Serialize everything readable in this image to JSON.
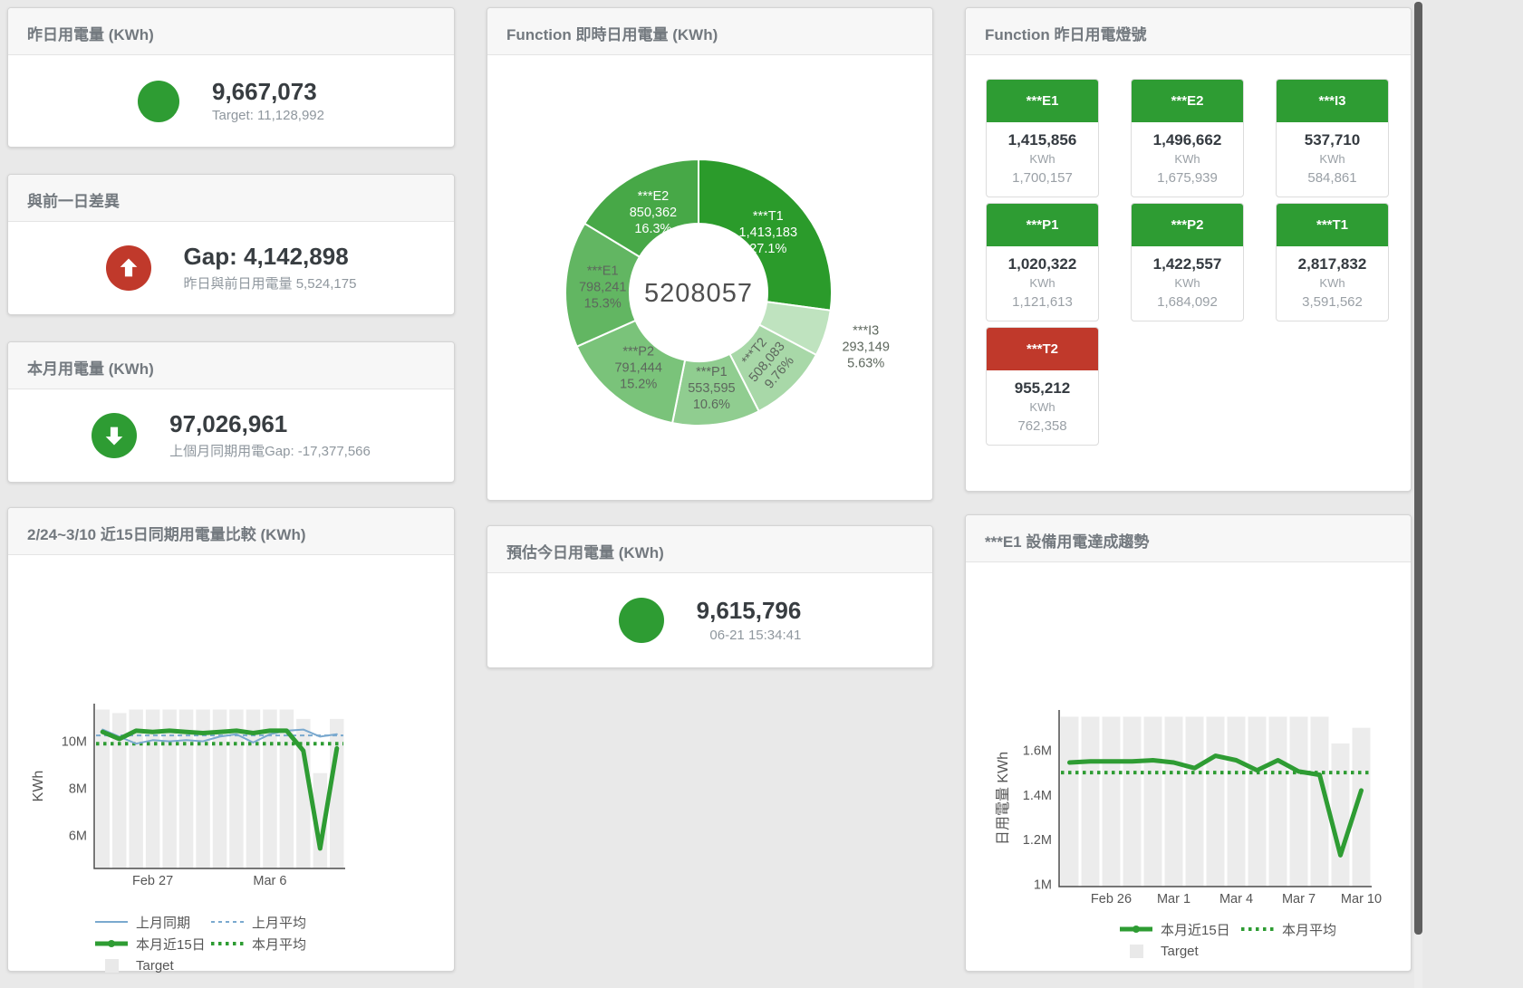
{
  "colors": {
    "green": "#2e9c33",
    "red": "#c0392b",
    "blue": "#7aa9cf",
    "bar_gray": "#ececec",
    "value_text": "#383d41",
    "sub_text": "#8f979e"
  },
  "cards": {
    "yesterday": {
      "title": "昨日用電量 (KWh)",
      "value": "9,667,073",
      "sub": "Target: 11,128,992"
    },
    "day_gap": {
      "title": "與前一日差異",
      "value": "Gap: 4,142,898",
      "sub": "昨日與前日用電量 5,524,175"
    },
    "month": {
      "title": "本月用電量 (KWh)",
      "value": "97,026,961",
      "sub": "上個月同期用電Gap: -17,377,566"
    },
    "compare": {
      "title": "2/24~3/10 近15日同期用電量比較 (KWh)"
    },
    "donut": {
      "title": "Function 即時日用電量 (KWh)"
    },
    "estimate": {
      "title": "預估今日用電量 (KWh)",
      "value": "9,615,796",
      "sub": "06-21 15:34:41"
    },
    "lights": {
      "title": "Function 昨日用電燈號"
    },
    "e1_trend": {
      "title": "***E1 設備用電達成趨勢"
    }
  },
  "lights_tiles": [
    {
      "name": "***E1",
      "value": "1,415,856",
      "unit": "KWh",
      "target": "1,700,157",
      "status": "green"
    },
    {
      "name": "***E2",
      "value": "1,496,662",
      "unit": "KWh",
      "target": "1,675,939",
      "status": "green"
    },
    {
      "name": "***I3",
      "value": "537,710",
      "unit": "KWh",
      "target": "584,861",
      "status": "green"
    },
    {
      "name": "***P1",
      "value": "1,020,322",
      "unit": "KWh",
      "target": "1,121,613",
      "status": "green"
    },
    {
      "name": "***P2",
      "value": "1,422,557",
      "unit": "KWh",
      "target": "1,684,092",
      "status": "green"
    },
    {
      "name": "***T1",
      "value": "2,817,832",
      "unit": "KWh",
      "target": "3,591,562",
      "status": "green"
    },
    {
      "name": "***T2",
      "value": "955,212",
      "unit": "KWh",
      "target": "762,358",
      "status": "red"
    }
  ],
  "chart_data": [
    {
      "type": "pie",
      "title": "Function 即時日用電量 (KWh)",
      "center_label": "5208057",
      "slices": [
        {
          "name": "***T1",
          "value": 1413183,
          "value_label": "1,413,183",
          "pct_label": "27.1%",
          "color": "#2b9b2b",
          "label": "inside-light"
        },
        {
          "name": "***I3",
          "value": 293149,
          "value_label": "293,149",
          "pct_label": "5.63%",
          "color": "#bfe3bf",
          "label": "outside"
        },
        {
          "name": "***T2",
          "value": 508083,
          "value_label": "508,083",
          "pct_label": "9.76%",
          "color": "#a8d8a8",
          "label": "rotated"
        },
        {
          "name": "***P1",
          "value": 553595,
          "value_label": "553,595",
          "pct_label": "10.6%",
          "color": "#90cd90",
          "label": "inside-dark"
        },
        {
          "name": "***P2",
          "value": 791444,
          "value_label": "791,444",
          "pct_label": "15.2%",
          "color": "#7ac37a",
          "label": "inside-dark"
        },
        {
          "name": "***E1",
          "value": 798241,
          "value_label": "798,241",
          "pct_label": "15.3%",
          "color": "#62b662",
          "label": "inside-dark"
        },
        {
          "name": "***E2",
          "value": 850362,
          "value_label": "850,362",
          "pct_label": "16.3%",
          "color": "#47a847",
          "label": "inside-light"
        }
      ]
    },
    {
      "type": "line",
      "title": "2/24~3/10 近15日同期用電量比較 (KWh)",
      "ylabel": "KWh",
      "unit": "M KWh",
      "ylim": [
        4.6,
        11.6
      ],
      "yticks": [
        {
          "value": 6,
          "label": "6M"
        },
        {
          "value": 8,
          "label": "8M"
        },
        {
          "value": 10,
          "label": "10M"
        }
      ],
      "xticks": [
        {
          "index": 3,
          "label": "Feb 27"
        },
        {
          "index": 10,
          "label": "Mar 6"
        }
      ],
      "categories": [
        "2/24",
        "2/25",
        "2/26",
        "2/27",
        "2/28",
        "3/1",
        "3/2",
        "3/3",
        "3/4",
        "3/5",
        "3/6",
        "3/7",
        "3/8",
        "3/9",
        "3/10"
      ],
      "series": [
        {
          "name": "Target",
          "type": "bar",
          "color": "#ececec",
          "values": [
            11.35,
            11.2,
            11.35,
            11.35,
            11.35,
            11.35,
            11.35,
            11.35,
            11.35,
            11.35,
            11.35,
            11.35,
            10.95,
            8.65,
            10.95
          ]
        },
        {
          "name": "上月平均",
          "type": "avg",
          "style": "dash",
          "color": "#7aa9cf",
          "value": 10.25
        },
        {
          "name": "本月平均",
          "type": "avg",
          "style": "dot",
          "color": "#2e9c33",
          "value": 9.9
        },
        {
          "name": "上月同期",
          "type": "line",
          "color": "#7aa9cf",
          "width": 2,
          "values": [
            10.5,
            10.2,
            9.9,
            10.05,
            10.0,
            10.05,
            10.0,
            10.2,
            10.3,
            9.95,
            10.3,
            10.45,
            10.5,
            10.2,
            10.3
          ]
        },
        {
          "name": "本月近15日",
          "type": "line",
          "color": "#2e9c33",
          "width": 5,
          "values": [
            10.4,
            10.1,
            10.45,
            10.4,
            10.45,
            10.4,
            10.35,
            10.4,
            10.45,
            10.35,
            10.45,
            10.45,
            9.6,
            5.45,
            9.7
          ]
        }
      ],
      "legend": [
        {
          "label": "上月同期",
          "swatch": "blue-line"
        },
        {
          "label": "上月平均",
          "swatch": "blue-dash"
        },
        {
          "label": "本月近15日",
          "swatch": "green-line"
        },
        {
          "label": "本月平均",
          "swatch": "green-dot"
        },
        {
          "label": "Target",
          "swatch": "gray-box"
        }
      ]
    },
    {
      "type": "line",
      "title": "***E1 設備用電達成趨勢",
      "ylabel": "日用電量 KWh",
      "unit": "M KWh",
      "ylim": [
        0.99,
        1.78
      ],
      "yticks": [
        {
          "value": 1,
          "label": "1M"
        },
        {
          "value": 1.2,
          "label": "1.2M"
        },
        {
          "value": 1.4,
          "label": "1.4M"
        },
        {
          "value": 1.6,
          "label": "1.6M"
        }
      ],
      "xticks": [
        {
          "index": 2,
          "label": "Feb 26"
        },
        {
          "index": 5,
          "label": "Mar 1"
        },
        {
          "index": 8,
          "label": "Mar 4"
        },
        {
          "index": 11,
          "label": "Mar 7"
        },
        {
          "index": 14,
          "label": "Mar 10"
        }
      ],
      "categories": [
        "2/24",
        "2/25",
        "2/26",
        "2/27",
        "2/28",
        "3/1",
        "3/2",
        "3/3",
        "3/4",
        "3/5",
        "3/6",
        "3/7",
        "3/8",
        "3/9",
        "3/10"
      ],
      "series": [
        {
          "name": "Target",
          "type": "bar",
          "color": "#ececec",
          "values": [
            1.75,
            1.75,
            1.75,
            1.75,
            1.75,
            1.75,
            1.75,
            1.75,
            1.75,
            1.75,
            1.75,
            1.75,
            1.75,
            1.63,
            1.7
          ]
        },
        {
          "name": "本月平均",
          "type": "avg",
          "style": "dot",
          "color": "#2e9c33",
          "value": 1.5
        },
        {
          "name": "本月近15日",
          "type": "line",
          "color": "#2e9c33",
          "width": 5,
          "values": [
            1.545,
            1.55,
            1.55,
            1.55,
            1.555,
            1.545,
            1.52,
            1.575,
            1.555,
            1.51,
            1.555,
            1.505,
            1.49,
            1.13,
            1.42
          ]
        }
      ],
      "legend": [
        {
          "label": "本月近15日",
          "swatch": "green-line"
        },
        {
          "label": "本月平均",
          "swatch": "green-dot"
        },
        {
          "label": "Target",
          "swatch": "gray-box"
        }
      ]
    }
  ]
}
